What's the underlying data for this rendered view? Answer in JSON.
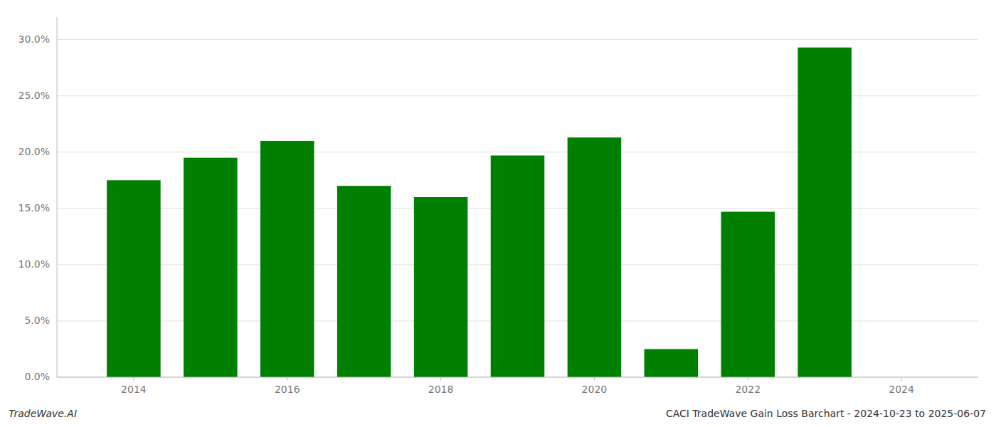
{
  "chart_data": {
    "type": "bar",
    "title": "CACI TradeWave Gain Loss Barchart - 2024-10-23 to 2025-06-07",
    "annotations": [
      "TradeWave.AI"
    ],
    "x": [
      2014,
      2015,
      2016,
      2017,
      2018,
      2019,
      2020,
      2021,
      2022,
      2023
    ],
    "values": [
      0.175,
      0.195,
      0.21,
      0.17,
      0.16,
      0.197,
      0.213,
      0.025,
      0.147,
      0.293
    ],
    "color": "#008000",
    "xlim": [
      2013.0,
      2025.0
    ],
    "xticks": [
      2014,
      2016,
      2018,
      2020,
      2022,
      2024
    ],
    "ylim": [
      0.0,
      0.32
    ],
    "yticks": [
      {
        "value": 0.0,
        "label": "0.0%"
      },
      {
        "value": 0.05,
        "label": "5.0%"
      },
      {
        "value": 0.1,
        "label": "10.0%"
      },
      {
        "value": 0.15,
        "label": "15.0%"
      },
      {
        "value": 0.2,
        "label": "20.0%"
      },
      {
        "value": 0.25,
        "label": "25.0%"
      },
      {
        "value": 0.3,
        "label": "30.0%"
      }
    ],
    "grid": true
  }
}
